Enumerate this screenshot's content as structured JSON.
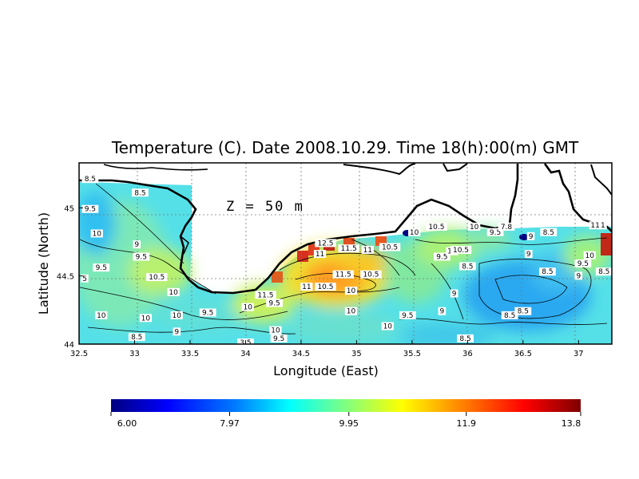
{
  "chart_data": {
    "type": "heatmap",
    "title": "Temperature (C). Date 2008.10.29. Time 18(h):00(m) GMT",
    "xlabel": "Longitude (East)",
    "ylabel": "Latitude (North)",
    "annotation": "Z = 50 m",
    "xlim": [
      32.5,
      37.3
    ],
    "ylim": [
      44.0,
      45.33
    ],
    "x_ticks": [
      "32.5",
      "33",
      "33.5",
      "34",
      "34.5",
      "35",
      "35.5",
      "36",
      "36.5",
      "37"
    ],
    "x_tick_values": [
      32.5,
      33,
      33.5,
      34,
      34.5,
      35,
      35.5,
      36,
      36.5,
      37
    ],
    "y_ticks": [
      "44",
      "44.5",
      "45"
    ],
    "y_tick_values": [
      44,
      44.5,
      45
    ],
    "grid": true,
    "colorbar": {
      "min": 6.0,
      "max": 13.8,
      "tick_labels": [
        "6.00",
        "7.97",
        "9.95",
        "11.9",
        "13.8"
      ],
      "tick_values": [
        6.0,
        7.97,
        9.95,
        11.9,
        13.8
      ],
      "colors": [
        "#00007f",
        "#0000ff",
        "#0080ff",
        "#00ffff",
        "#80ff80",
        "#ffff00",
        "#ff8000",
        "#ff0000",
        "#7f0000"
      ]
    },
    "contour_labels": [
      {
        "text": "8.5",
        "lon": 32.6,
        "lat": 45.2
      },
      {
        "text": "8.5",
        "lon": 33.05,
        "lat": 45.1
      },
      {
        "text": "9.5",
        "lon": 32.6,
        "lat": 44.98
      },
      {
        "text": "10",
        "lon": 32.66,
        "lat": 44.8
      },
      {
        "text": "9",
        "lon": 33.02,
        "lat": 44.72
      },
      {
        "text": "9.5",
        "lon": 33.06,
        "lat": 44.63
      },
      {
        "text": "9.5",
        "lon": 32.7,
        "lat": 44.55
      },
      {
        "text": "5",
        "lon": 32.55,
        "lat": 44.47
      },
      {
        "text": "10.5",
        "lon": 33.2,
        "lat": 44.48
      },
      {
        "text": "10",
        "lon": 33.35,
        "lat": 44.37
      },
      {
        "text": "10",
        "lon": 32.7,
        "lat": 44.2
      },
      {
        "text": "10",
        "lon": 33.1,
        "lat": 44.18
      },
      {
        "text": "10",
        "lon": 33.38,
        "lat": 44.2
      },
      {
        "text": "9.5",
        "lon": 33.66,
        "lat": 44.22
      },
      {
        "text": "9",
        "lon": 33.38,
        "lat": 44.08
      },
      {
        "text": "8.5",
        "lon": 33.02,
        "lat": 44.04
      },
      {
        "text": "10",
        "lon": 34.02,
        "lat": 44.26
      },
      {
        "text": "11.5",
        "lon": 34.18,
        "lat": 44.35
      },
      {
        "text": "9.5",
        "lon": 34.26,
        "lat": 44.29
      },
      {
        "text": "10",
        "lon": 34.27,
        "lat": 44.09
      },
      {
        "text": "9.5",
        "lon": 34.3,
        "lat": 44.03
      },
      {
        "text": "3.5",
        "lon": 34.0,
        "lat": 44.0
      },
      {
        "text": "12.5",
        "lon": 34.72,
        "lat": 44.73
      },
      {
        "text": "11",
        "lon": 34.67,
        "lat": 44.65
      },
      {
        "text": "11.5",
        "lon": 34.93,
        "lat": 44.69
      },
      {
        "text": "11",
        "lon": 35.1,
        "lat": 44.68
      },
      {
        "text": "10.5",
        "lon": 35.3,
        "lat": 44.7
      },
      {
        "text": "11.5",
        "lon": 34.88,
        "lat": 44.5
      },
      {
        "text": "10.5",
        "lon": 35.13,
        "lat": 44.5
      },
      {
        "text": "11",
        "lon": 34.55,
        "lat": 44.41
      },
      {
        "text": "10.5",
        "lon": 34.72,
        "lat": 44.41
      },
      {
        "text": "10",
        "lon": 34.95,
        "lat": 44.38
      },
      {
        "text": "10",
        "lon": 34.95,
        "lat": 44.23
      },
      {
        "text": "9.5",
        "lon": 35.46,
        "lat": 44.2
      },
      {
        "text": "10",
        "lon": 35.28,
        "lat": 44.12
      },
      {
        "text": "10",
        "lon": 35.52,
        "lat": 44.81
      },
      {
        "text": "10.5",
        "lon": 35.72,
        "lat": 44.85
      },
      {
        "text": "10",
        "lon": 36.06,
        "lat": 44.85
      },
      {
        "text": "9.5",
        "lon": 36.25,
        "lat": 44.81
      },
      {
        "text": "9.5",
        "lon": 35.77,
        "lat": 44.63
      },
      {
        "text": "10",
        "lon": 35.86,
        "lat": 44.67
      },
      {
        "text": "10.5",
        "lon": 35.94,
        "lat": 44.68
      },
      {
        "text": "9",
        "lon": 35.88,
        "lat": 44.36
      },
      {
        "text": "9",
        "lon": 35.77,
        "lat": 44.23
      },
      {
        "text": "8.5",
        "lon": 35.98,
        "lat": 44.03
      },
      {
        "text": "7.8",
        "lon": 36.35,
        "lat": 44.85
      },
      {
        "text": "8.5",
        "lon": 36.73,
        "lat": 44.81
      },
      {
        "text": "9",
        "lon": 36.57,
        "lat": 44.78
      },
      {
        "text": "9",
        "lon": 36.55,
        "lat": 44.65
      },
      {
        "text": "8.5",
        "lon": 36.0,
        "lat": 44.56
      },
      {
        "text": "8.5",
        "lon": 36.72,
        "lat": 44.52
      },
      {
        "text": "8.5",
        "lon": 36.5,
        "lat": 44.23
      },
      {
        "text": "8.5",
        "lon": 36.38,
        "lat": 44.2
      },
      {
        "text": "9",
        "lon": 37.0,
        "lat": 44.49
      },
      {
        "text": "9.5",
        "lon": 37.04,
        "lat": 44.58
      },
      {
        "text": "10",
        "lon": 37.1,
        "lat": 44.64
      },
      {
        "text": "8.5",
        "lon": 37.23,
        "lat": 44.52
      },
      {
        "text": "11",
        "lon": 37.15,
        "lat": 44.86
      },
      {
        "text": "1",
        "lon": 37.22,
        "lat": 44.86
      }
    ]
  }
}
